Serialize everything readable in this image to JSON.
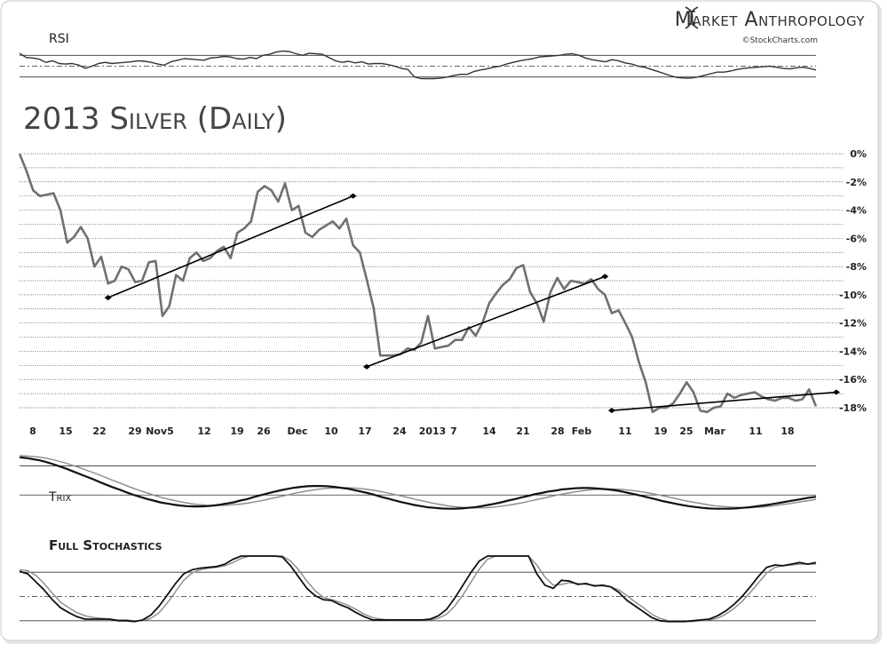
{
  "brand": {
    "name": "Market Anthropology",
    "source": "©StockCharts.com"
  },
  "colors": {
    "price_line": "#707070",
    "trend_line": "#000000",
    "indicator_fast": "#111111",
    "indicator_slow": "#8a8a8a",
    "grid": "#333333"
  },
  "chart_data": [
    {
      "type": "line",
      "panel": "rsi",
      "title": "RSI",
      "ylim": [
        0,
        100
      ],
      "guides": [
        70,
        50,
        30
      ],
      "series": [
        {
          "values": [
            74,
            66,
            65,
            63,
            57,
            60,
            55,
            54,
            55,
            52,
            46,
            50,
            55,
            57,
            55,
            56,
            57,
            58,
            60,
            59,
            57,
            54,
            52,
            58,
            61,
            64,
            63,
            62,
            61,
            65,
            66,
            68,
            67,
            64,
            63,
            66,
            64,
            70,
            72,
            76,
            78,
            77,
            73,
            70,
            74,
            73,
            72,
            66,
            60,
            57,
            59,
            56,
            58,
            54,
            55,
            55,
            53,
            50,
            46,
            44,
            30,
            27,
            27,
            27,
            28,
            30,
            33,
            35,
            35,
            40,
            43,
            45,
            48,
            50,
            54,
            57,
            60,
            62,
            64,
            67,
            68,
            69,
            70,
            72,
            73,
            70,
            65,
            62,
            60,
            58,
            62,
            60,
            56,
            54,
            50,
            48,
            44,
            40,
            36,
            32,
            29,
            28,
            28,
            30,
            33,
            36,
            39,
            39,
            41,
            44,
            46,
            47,
            48,
            49,
            50,
            48,
            46,
            45,
            47,
            48,
            46,
            43
          ]
        }
      ]
    },
    {
      "type": "line",
      "panel": "price",
      "title": "2013 Silver (Daily)",
      "ylabel_unit": "%",
      "ylim": [
        -18.5,
        0
      ],
      "yticks": [
        "0%",
        "-2%",
        "-4%",
        "-6%",
        "-8%",
        "-10%",
        "-12%",
        "-14%",
        "-16%",
        "-18%"
      ],
      "xticks": [
        "8",
        "15",
        "22",
        "29",
        "Nov5",
        "12",
        "19",
        "26",
        "Dec",
        "10",
        "17",
        "24",
        "2013",
        "7",
        "14",
        "21",
        "28",
        "Feb",
        "11",
        "19",
        "25",
        "Mar",
        "11",
        "18"
      ],
      "series": [
        {
          "values": [
            0,
            -1.2,
            -2.6,
            -3.0,
            -2.9,
            -2.8,
            -4.0,
            -6.3,
            -5.9,
            -5.2,
            -6.0,
            -8.0,
            -7.3,
            -9.2,
            -9.0,
            -8.0,
            -8.2,
            -9.1,
            -9.0,
            -7.7,
            -7.6,
            -11.5,
            -10.8,
            -8.6,
            -9.0,
            -7.4,
            -7.0,
            -7.6,
            -7.4,
            -6.9,
            -6.6,
            -7.4,
            -5.6,
            -5.3,
            -4.8,
            -2.7,
            -2.3,
            -2.6,
            -3.4,
            -2.1,
            -4.0,
            -3.7,
            -5.6,
            -5.9,
            -5.4,
            -5.1,
            -4.8,
            -5.3,
            -4.6,
            -6.5,
            -7.0,
            -8.9,
            -10.9,
            -14.3,
            -14.3,
            -14.3,
            -14.2,
            -13.8,
            -13.9,
            -13.4,
            -11.5,
            -13.8,
            -13.7,
            -13.6,
            -13.2,
            -13.2,
            -12.3,
            -12.9,
            -12.0,
            -10.6,
            -9.9,
            -9.3,
            -8.9,
            -8.1,
            -7.9,
            -9.8,
            -10.6,
            -11.9,
            -9.8,
            -8.8,
            -9.6,
            -9.0,
            -9.1,
            -9.2,
            -8.9,
            -9.6,
            -10.0,
            -11.3,
            -11.1,
            -12.0,
            -13.0,
            -14.8,
            -16.2,
            -18.3,
            -18.0,
            -18.0,
            -17.7,
            -17.0,
            -16.2,
            -16.9,
            -18.2,
            -18.3,
            -18.0,
            -17.9,
            -17.0,
            -17.3,
            -17.1,
            -17.0,
            -16.9,
            -17.2,
            -17.4,
            -17.5,
            -17.3,
            -17.3,
            -17.5,
            -17.4,
            -16.7,
            -17.9
          ]
        }
      ],
      "trendlines": [
        {
          "x": [
            13,
            49
          ],
          "y": [
            -10.2,
            -3.0
          ]
        },
        {
          "x": [
            51,
            86
          ],
          "y": [
            -15.1,
            -8.7
          ]
        },
        {
          "x": [
            87,
            120
          ],
          "y": [
            -18.2,
            -16.9
          ]
        }
      ]
    },
    {
      "type": "line",
      "panel": "trix",
      "title": "Trix",
      "ylim": [
        -1.3,
        1.5
      ],
      "guides": [
        1,
        0
      ],
      "series": [
        {
          "values": [
            1.29,
            1.27,
            1.23,
            1.19,
            1.13,
            1.06,
            0.98,
            0.9,
            0.81,
            0.72,
            0.63,
            0.54,
            0.44,
            0.35,
            0.26,
            0.18,
            0.09,
            0.01,
            -0.06,
            -0.13,
            -0.19,
            -0.25,
            -0.29,
            -0.33,
            -0.36,
            -0.38,
            -0.39,
            -0.39,
            -0.38,
            -0.36,
            -0.33,
            -0.29,
            -0.25,
            -0.19,
            -0.14,
            -0.07,
            -0.01,
            0.05,
            0.11,
            0.16,
            0.21,
            0.25,
            0.28,
            0.3,
            0.31,
            0.31,
            0.3,
            0.28,
            0.25,
            0.22,
            0.17,
            0.12,
            0.07,
            0.01,
            -0.06,
            -0.12,
            -0.18,
            -0.24,
            -0.29,
            -0.34,
            -0.38,
            -0.42,
            -0.44,
            -0.46,
            -0.47,
            -0.47,
            -0.46,
            -0.44,
            -0.42,
            -0.38,
            -0.34,
            -0.3,
            -0.25,
            -0.19,
            -0.14,
            -0.08,
            -0.03,
            0.03,
            0.07,
            0.12,
            0.15,
            0.19,
            0.21,
            0.23,
            0.24,
            0.24,
            0.23,
            0.21,
            0.19,
            0.16,
            0.12,
            0.07,
            0.02,
            -0.03,
            -0.09,
            -0.14,
            -0.2,
            -0.25,
            -0.3,
            -0.34,
            -0.38,
            -0.41,
            -0.44,
            -0.46,
            -0.47,
            -0.47,
            -0.47,
            -0.46,
            -0.44,
            -0.42,
            -0.39,
            -0.36,
            -0.33,
            -0.29,
            -0.25,
            -0.21,
            -0.17,
            -0.13,
            -0.09,
            -0.06
          ]
        },
        {
          "values": [
            1.35,
            1.34,
            1.32,
            1.3,
            1.26,
            1.21,
            1.15,
            1.09,
            1.01,
            0.94,
            0.85,
            0.77,
            0.68,
            0.59,
            0.5,
            0.41,
            0.32,
            0.23,
            0.15,
            0.08,
            0.0,
            -0.07,
            -0.13,
            -0.18,
            -0.23,
            -0.27,
            -0.31,
            -0.33,
            -0.35,
            -0.36,
            -0.36,
            -0.35,
            -0.33,
            -0.31,
            -0.28,
            -0.24,
            -0.2,
            -0.15,
            -0.1,
            -0.05,
            0.0,
            0.05,
            0.1,
            0.14,
            0.18,
            0.21,
            0.23,
            0.24,
            0.25,
            0.25,
            0.24,
            0.22,
            0.19,
            0.16,
            0.12,
            0.07,
            0.02,
            -0.03,
            -0.08,
            -0.14,
            -0.19,
            -0.24,
            -0.29,
            -0.33,
            -0.37,
            -0.4,
            -0.42,
            -0.43,
            -0.44,
            -0.44,
            -0.43,
            -0.41,
            -0.38,
            -0.35,
            -0.31,
            -0.27,
            -0.22,
            -0.17,
            -0.12,
            -0.07,
            -0.02,
            0.03,
            0.07,
            0.11,
            0.14,
            0.17,
            0.19,
            0.2,
            0.21,
            0.2,
            0.19,
            0.17,
            0.14,
            0.11,
            0.07,
            0.03,
            -0.02,
            -0.07,
            -0.12,
            -0.17,
            -0.22,
            -0.26,
            -0.3,
            -0.34,
            -0.37,
            -0.39,
            -0.41,
            -0.42,
            -0.43,
            -0.43,
            -0.42,
            -0.41,
            -0.39,
            -0.36,
            -0.33,
            -0.3,
            -0.26,
            -0.22,
            -0.19,
            -0.15
          ]
        }
      ]
    },
    {
      "type": "line",
      "panel": "stochastics",
      "title": "Full Stochastics",
      "ylim": [
        0,
        100
      ],
      "guides": [
        80,
        50,
        20
      ],
      "series": [
        {
          "values": [
            81,
            78,
            68,
            58,
            46,
            36,
            30,
            25,
            22,
            22,
            22,
            22,
            20,
            20,
            19,
            21,
            27,
            38,
            52,
            66,
            78,
            83,
            85,
            86,
            87,
            90,
            96,
            100,
            100,
            100,
            100,
            100,
            99,
            88,
            74,
            60,
            51,
            46,
            45,
            40,
            36,
            30,
            25,
            21,
            21,
            21,
            21,
            21,
            21,
            21,
            22,
            26,
            34,
            48,
            64,
            80,
            94,
            100,
            100,
            100,
            100,
            100,
            100,
            78,
            64,
            60,
            70,
            69,
            65,
            66,
            63,
            64,
            62,
            55,
            45,
            38,
            31,
            24,
            20,
            19,
            19,
            19,
            20,
            21,
            22,
            26,
            32,
            40,
            50,
            62,
            75,
            86,
            89,
            88,
            90,
            92,
            90,
            92
          ]
        },
        {
          "values": [
            83,
            82,
            76,
            66,
            54,
            43,
            36,
            30,
            26,
            24,
            23,
            22,
            21,
            21,
            20,
            20,
            23,
            30,
            42,
            56,
            70,
            79,
            83,
            85,
            86,
            88,
            92,
            97,
            100,
            100,
            100,
            100,
            100,
            94,
            83,
            69,
            57,
            49,
            46,
            43,
            39,
            34,
            28,
            24,
            22,
            21,
            21,
            21,
            21,
            21,
            21,
            23,
            28,
            38,
            52,
            68,
            84,
            96,
            100,
            100,
            100,
            100,
            100,
            89,
            74,
            64,
            65,
            67,
            66,
            65,
            64,
            63,
            62,
            58,
            51,
            43,
            36,
            28,
            23,
            20,
            19,
            19,
            19,
            20,
            21,
            23,
            28,
            35,
            44,
            55,
            67,
            79,
            86,
            88,
            89,
            90,
            90,
            90
          ]
        }
      ]
    }
  ]
}
